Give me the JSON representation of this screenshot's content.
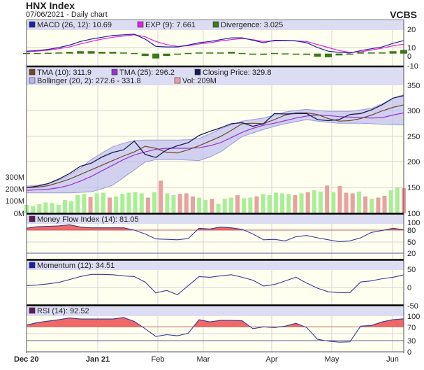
{
  "header": {
    "title": "HNX Index",
    "subtitle": "07/06/2021 - Daily chart",
    "brand": "VCBS"
  },
  "colors": {
    "plot_bg": "#fffff0",
    "legend_bg": "#dcdcf2",
    "macd": "#2020a0",
    "exp": "#e020e0",
    "divergence": "#3a7a1a",
    "tma10": "#6b4a2a",
    "tma25": "#9a30d0",
    "close": "#1a1a50",
    "bollinger": "#b8b8ee",
    "vol_up": "#a8ee98",
    "vol_down": "#e8a0a0",
    "overbought_fill": "#f06868",
    "line": "#3a3a90"
  },
  "chart_data": [
    {
      "type": "line",
      "panel": "macd",
      "ylim": [
        -10,
        20
      ],
      "ticks": [
        "20",
        "10",
        "0",
        "-10"
      ],
      "legend": [
        {
          "label": "MACD (26, 12): 10.69",
          "color": "#2020a0"
        },
        {
          "label": "EXP (9): 7.661",
          "color": "#e020e0"
        },
        {
          "label": "Divergence: 3.025",
          "color": "#3a7a1a"
        }
      ],
      "series": [
        {
          "name": "MACD (26, 12)",
          "values": [
            2,
            2.5,
            3.5,
            5,
            7,
            10,
            12,
            13.5,
            15,
            15.5,
            16,
            12,
            6,
            5.5,
            5.5,
            7,
            9,
            10,
            11.5,
            13,
            13,
            11,
            9,
            11,
            11,
            10.5,
            9,
            5,
            2,
            1,
            0.5,
            2.5,
            4,
            5.5,
            8.5,
            10.69
          ]
        },
        {
          "name": "EXP (9)",
          "values": [
            1.5,
            2,
            2.8,
            4,
            5.5,
            8,
            10,
            12,
            13.5,
            14.5,
            15.5,
            14,
            10,
            7.5,
            6,
            6.5,
            8,
            9,
            10.5,
            11.5,
            12.5,
            11.5,
            10,
            10.5,
            10.8,
            10.5,
            10,
            7.5,
            5,
            2.5,
            1,
            1.5,
            3,
            4.5,
            6.5,
            7.661
          ]
        },
        {
          "name": "Divergence",
          "values": [
            0.5,
            0.5,
            0.7,
            1,
            1.5,
            2,
            2,
            1.5,
            1.5,
            1,
            0.5,
            -2,
            -4,
            -2,
            -0.5,
            0.5,
            1,
            1,
            1,
            1.5,
            0.5,
            -0.5,
            -1,
            0.5,
            0.2,
            0,
            -1,
            -2.5,
            -3,
            -1.5,
            -0.5,
            1,
            1,
            1,
            2,
            3.025
          ]
        }
      ]
    },
    {
      "type": "line",
      "panel": "price",
      "ylim": [
        100,
        350
      ],
      "ticks": [
        "350",
        "300",
        "250",
        "200",
        "150",
        "100"
      ],
      "legend": [
        {
          "label": "TMA (10): 311.9",
          "color": "#6b4a2a"
        },
        {
          "label": "TMA (25): 296.2",
          "color": "#9a30d0"
        },
        {
          "label": "Closing Price: 329.8",
          "color": "#1a1a50"
        },
        {
          "label": "Bollinger (20, 2): 272.6 - 331.8",
          "color": "#b8b8ee"
        },
        {
          "label": "Vol: 209M",
          "color": "#e8a0a0"
        }
      ],
      "series": [
        {
          "name": "Closing Price",
          "values": [
            150,
            153,
            158,
            167,
            178,
            192,
            198,
            210,
            219,
            224,
            241,
            215,
            209,
            224,
            232,
            238,
            252,
            260,
            267,
            275,
            277,
            270,
            275,
            295,
            294,
            295,
            295,
            283,
            281,
            283,
            293,
            295,
            302,
            312,
            325,
            329.8
          ]
        },
        {
          "name": "TMA (10)",
          "values": [
            150,
            151,
            154,
            160,
            167,
            176,
            185,
            194,
            203,
            212,
            220,
            231,
            227,
            219,
            218,
            224,
            232,
            241,
            250,
            262,
            275,
            276,
            275,
            283,
            292,
            296,
            296,
            293,
            285,
            280,
            281,
            285,
            292,
            300,
            307,
            311.9
          ]
        },
        {
          "name": "TMA (25)",
          "values": [
            145,
            146,
            147,
            150,
            155,
            163,
            172,
            183,
            194,
            205,
            214,
            220,
            225,
            227,
            227,
            227,
            228,
            232,
            238,
            248,
            258,
            266,
            272,
            276,
            281,
            286,
            290,
            292,
            291,
            289,
            288,
            287,
            286,
            287,
            292,
            296.2
          ]
        },
        {
          "name": "Bollinger upper",
          "values": [
            153,
            155,
            158,
            165,
            175,
            188,
            205,
            218,
            230,
            237,
            242,
            243,
            243,
            243,
            243,
            244,
            246,
            255,
            265,
            273,
            280,
            283,
            286,
            292,
            298,
            301,
            303,
            301,
            299,
            299,
            299,
            302,
            305,
            314,
            325,
            331.8
          ]
        },
        {
          "name": "Bollinger lower",
          "values": [
            140,
            140,
            140,
            140,
            140,
            141,
            142,
            148,
            155,
            170,
            185,
            200,
            205,
            205,
            205,
            204,
            203,
            210,
            220,
            235,
            250,
            257,
            264,
            270,
            275,
            279,
            283,
            280,
            278,
            276,
            276,
            276,
            275,
            274,
            273,
            272.6
          ]
        }
      ]
    },
    {
      "type": "bar",
      "panel": "volume",
      "ylim": [
        0,
        300
      ],
      "ticks": [
        "300M",
        "200M",
        "100M",
        "0M"
      ],
      "unit": "M",
      "values": [
        70,
        60,
        75,
        90,
        85,
        70,
        110,
        100,
        150,
        160,
        135,
        165,
        170,
        130,
        140,
        160,
        170,
        175,
        165,
        130,
        175,
        270,
        165,
        150,
        160,
        165,
        140,
        130,
        110,
        120,
        80,
        120,
        130,
        150,
        125,
        130,
        140,
        160,
        150,
        170,
        165,
        160,
        150,
        165,
        175,
        190,
        180,
        230,
        175,
        225,
        170,
        165,
        180,
        140,
        120,
        130,
        145,
        190,
        215,
        209
      ],
      "down": [
        10,
        13,
        19,
        21,
        24,
        25,
        26,
        29,
        33,
        36,
        42,
        44,
        47,
        49,
        50,
        51,
        53,
        55,
        56,
        59
      ]
    },
    {
      "type": "area",
      "panel": "mfi",
      "ylim": [
        0,
        100
      ],
      "threshold": 80,
      "ticks": [
        "100",
        "80",
        "50",
        "20"
      ],
      "legend": [
        {
          "label": "Money Flow Index (14): 81.05",
          "color": "#5a1a5a"
        }
      ],
      "series": [
        {
          "name": "Money Flow Index (14)",
          "values": [
            85,
            89,
            90,
            91,
            94,
            88,
            86,
            86,
            86,
            86,
            80,
            70,
            57,
            56,
            55,
            58,
            85,
            83,
            88,
            86,
            82,
            70,
            55,
            56,
            52,
            63,
            66,
            60,
            55,
            50,
            52,
            60,
            74,
            79,
            85,
            81.05
          ]
        }
      ]
    },
    {
      "type": "line",
      "panel": "momentum",
      "ylim": [
        -50,
        50
      ],
      "ticks": [
        "50",
        "0",
        "-50"
      ],
      "legend": [
        {
          "label": "Momentum (12): 34.51",
          "color": "#2020a0"
        }
      ],
      "series": [
        {
          "name": "Momentum (12)",
          "values": [
            5,
            7,
            10,
            14,
            22,
            30,
            36,
            36,
            35,
            32,
            30,
            15,
            -15,
            -8,
            -20,
            5,
            30,
            28,
            32,
            35,
            28,
            20,
            4,
            8,
            18,
            28,
            12,
            -2,
            -12,
            -14,
            -14,
            15,
            18,
            24,
            28,
            34.51
          ]
        }
      ]
    },
    {
      "type": "area",
      "panel": "rsi",
      "ylim": [
        0,
        100
      ],
      "threshold": 70,
      "ticks": [
        "100",
        "70",
        "30",
        "0"
      ],
      "legend": [
        {
          "label": "RSI (14): 92.52",
          "color": "#5a1a5a"
        }
      ],
      "series": [
        {
          "name": "RSI (14)",
          "values": [
            75,
            82,
            86,
            90,
            95,
            92,
            92,
            92,
            92,
            96,
            85,
            65,
            43,
            48,
            45,
            52,
            90,
            84,
            88,
            88,
            87,
            65,
            70,
            68,
            72,
            80,
            68,
            35,
            30,
            27,
            28,
            72,
            74,
            84,
            90,
            92.52
          ]
        }
      ]
    }
  ],
  "x_axis": {
    "labels": [
      "Dec 20",
      "Jan 21",
      "Feb",
      "Mar",
      "Apr",
      "May",
      "Jun"
    ]
  }
}
